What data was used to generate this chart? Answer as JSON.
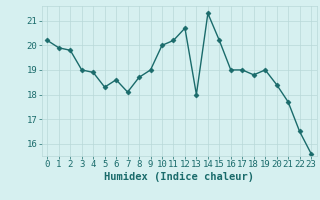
{
  "x": [
    0,
    1,
    2,
    3,
    4,
    5,
    6,
    7,
    8,
    9,
    10,
    11,
    12,
    13,
    14,
    15,
    16,
    17,
    18,
    19,
    20,
    21,
    22,
    23
  ],
  "y": [
    20.2,
    19.9,
    19.8,
    19.0,
    18.9,
    18.3,
    18.6,
    18.1,
    18.7,
    19.0,
    20.0,
    20.2,
    20.7,
    18.0,
    21.3,
    20.2,
    19.0,
    19.0,
    18.8,
    19.0,
    18.4,
    17.7,
    16.5,
    15.6
  ],
  "line_color": "#1a6b6b",
  "marker": "D",
  "markersize": 2.5,
  "linewidth": 1.0,
  "bg_color": "#d6f0f0",
  "grid_color": "#b8d8d8",
  "tick_color": "#1a6b6b",
  "label_color": "#1a6b6b",
  "xlabel": "Humidex (Indice chaleur)",
  "ylim": [
    15.5,
    21.6
  ],
  "yticks": [
    16,
    17,
    18,
    19,
    20,
    21
  ],
  "xticks": [
    0,
    1,
    2,
    3,
    4,
    5,
    6,
    7,
    8,
    9,
    10,
    11,
    12,
    13,
    14,
    15,
    16,
    17,
    18,
    19,
    20,
    21,
    22,
    23
  ],
  "xlabel_fontsize": 7.5,
  "tick_fontsize": 6.5,
  "figsize": [
    3.2,
    2.0
  ],
  "dpi": 100
}
